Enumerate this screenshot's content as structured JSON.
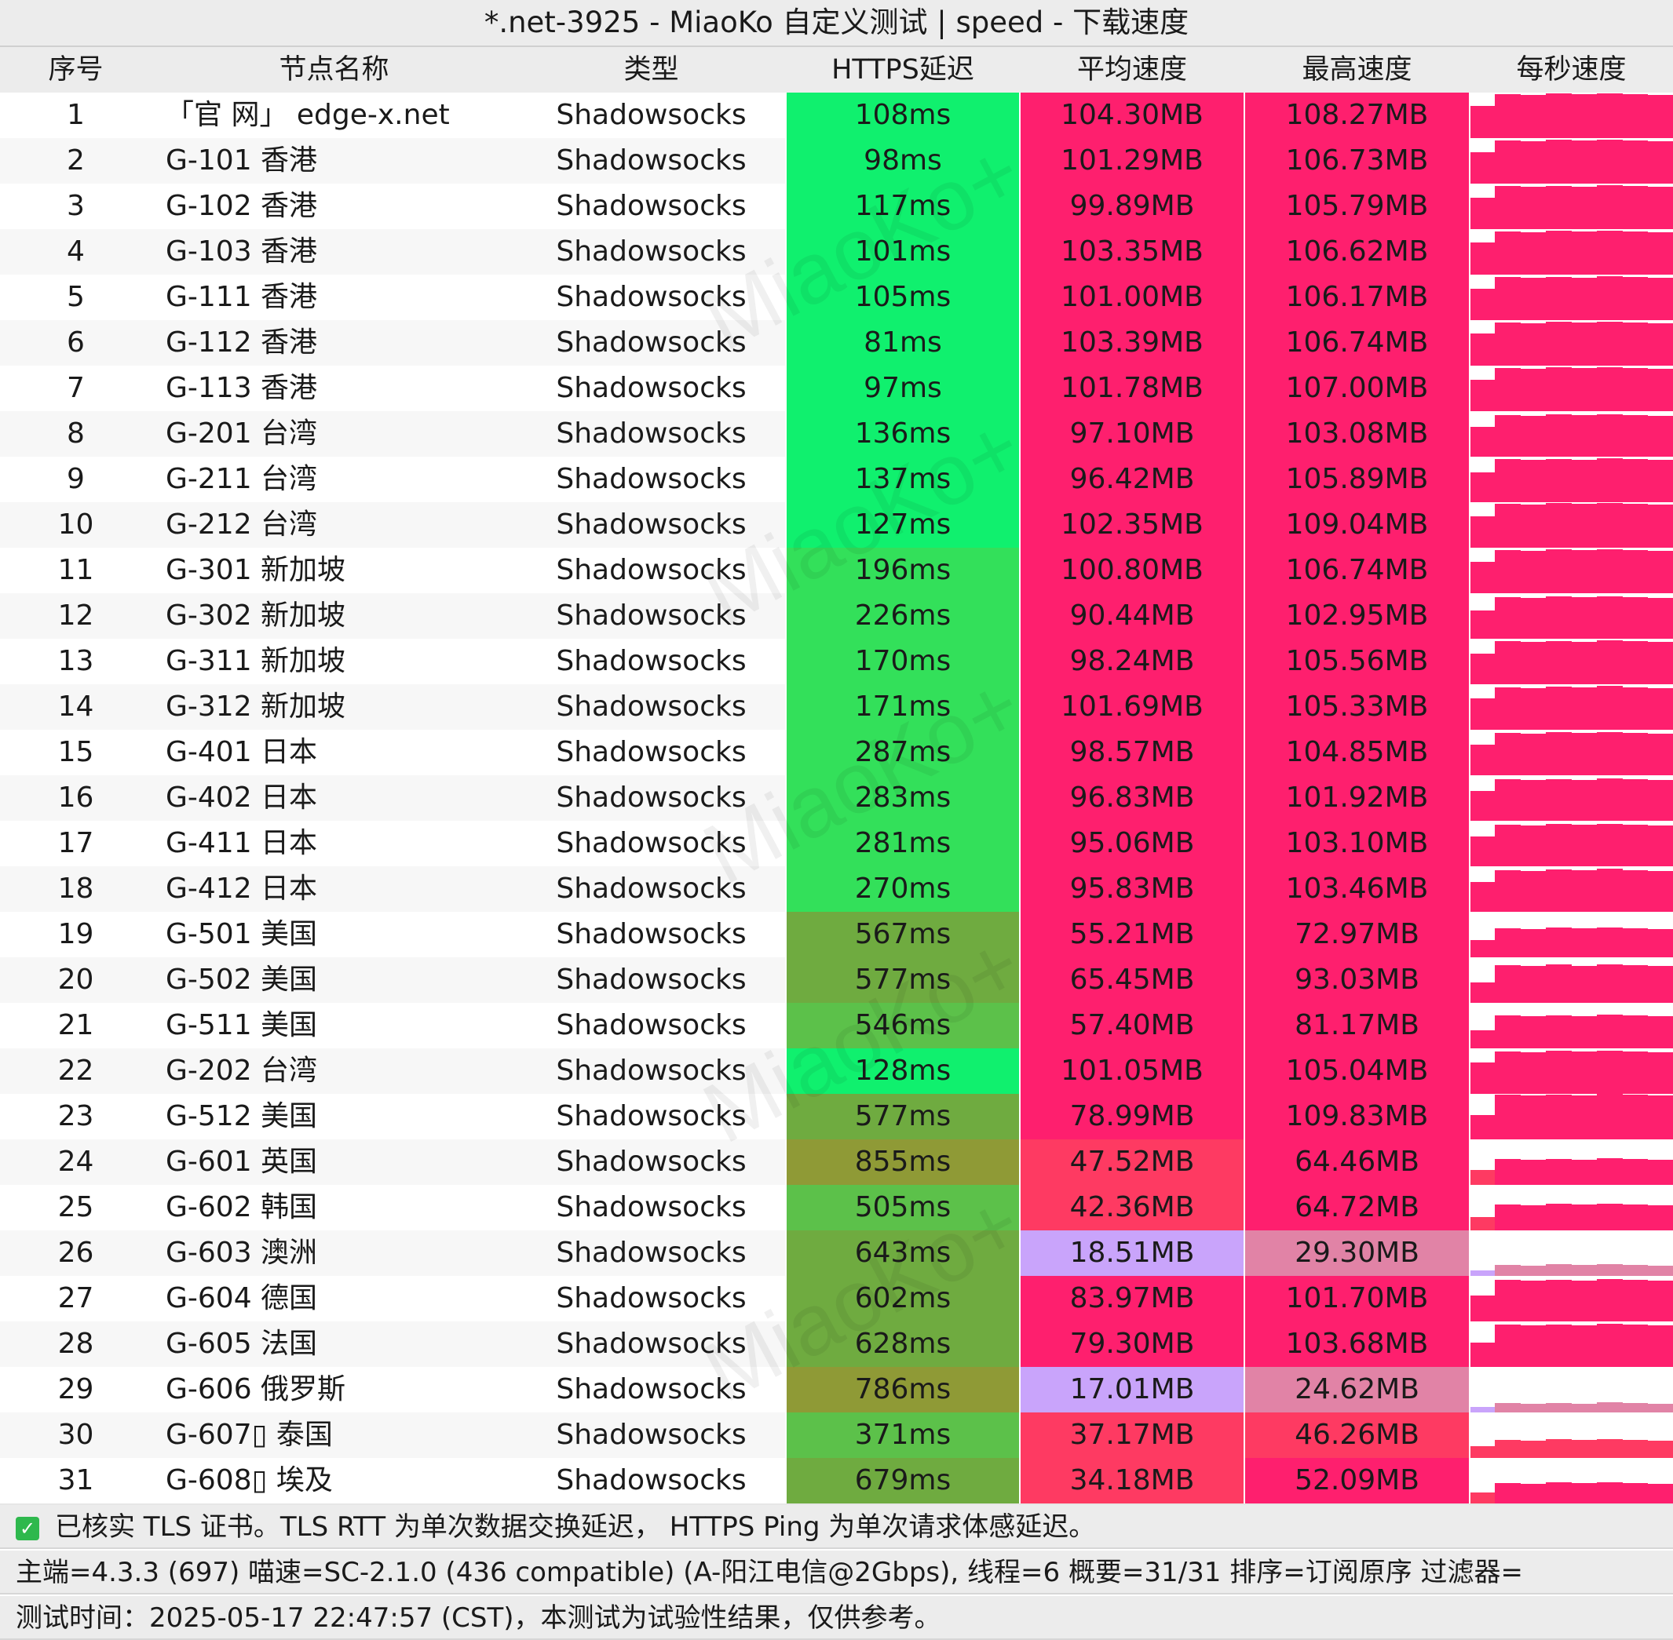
{
  "title": "*.net-3925 - MiaoKo 自定义测试 | speed - 下载速度",
  "columns": [
    "序号",
    "节点名称",
    "类型",
    "HTTPS延迟",
    "平均速度",
    "最高速度",
    "每秒速度"
  ],
  "rows": [
    {
      "idx": "1",
      "name": "「官 网」 edge-x.net",
      "type": "Shadowsocks",
      "latency": "108ms",
      "avg": "104.30MB",
      "max": "108.27MB"
    },
    {
      "idx": "2",
      "name": "G-101 香港",
      "type": "Shadowsocks",
      "latency": "98ms",
      "avg": "101.29MB",
      "max": "106.73MB"
    },
    {
      "idx": "3",
      "name": "G-102 香港",
      "type": "Shadowsocks",
      "latency": "117ms",
      "avg": "99.89MB",
      "max": "105.79MB"
    },
    {
      "idx": "4",
      "name": "G-103 香港",
      "type": "Shadowsocks",
      "latency": "101ms",
      "avg": "103.35MB",
      "max": "106.62MB"
    },
    {
      "idx": "5",
      "name": "G-111 香港",
      "type": "Shadowsocks",
      "latency": "105ms",
      "avg": "101.00MB",
      "max": "106.17MB"
    },
    {
      "idx": "6",
      "name": "G-112 香港",
      "type": "Shadowsocks",
      "latency": "81ms",
      "avg": "103.39MB",
      "max": "106.74MB"
    },
    {
      "idx": "7",
      "name": "G-113 香港",
      "type": "Shadowsocks",
      "latency": "97ms",
      "avg": "101.78MB",
      "max": "107.00MB"
    },
    {
      "idx": "8",
      "name": "G-201 台湾",
      "type": "Shadowsocks",
      "latency": "136ms",
      "avg": "97.10MB",
      "max": "103.08MB"
    },
    {
      "idx": "9",
      "name": "G-211 台湾",
      "type": "Shadowsocks",
      "latency": "137ms",
      "avg": "96.42MB",
      "max": "105.89MB"
    },
    {
      "idx": "10",
      "name": "G-212 台湾",
      "type": "Shadowsocks",
      "latency": "127ms",
      "avg": "102.35MB",
      "max": "109.04MB"
    },
    {
      "idx": "11",
      "name": "G-301 新加坡",
      "type": "Shadowsocks",
      "latency": "196ms",
      "avg": "100.80MB",
      "max": "106.74MB"
    },
    {
      "idx": "12",
      "name": "G-302 新加坡",
      "type": "Shadowsocks",
      "latency": "226ms",
      "avg": "90.44MB",
      "max": "102.95MB"
    },
    {
      "idx": "13",
      "name": "G-311 新加坡",
      "type": "Shadowsocks",
      "latency": "170ms",
      "avg": "98.24MB",
      "max": "105.56MB"
    },
    {
      "idx": "14",
      "name": "G-312 新加坡",
      "type": "Shadowsocks",
      "latency": "171ms",
      "avg": "101.69MB",
      "max": "105.33MB"
    },
    {
      "idx": "15",
      "name": "G-401 日本",
      "type": "Shadowsocks",
      "latency": "287ms",
      "avg": "98.57MB",
      "max": "104.85MB"
    },
    {
      "idx": "16",
      "name": "G-402 日本",
      "type": "Shadowsocks",
      "latency": "283ms",
      "avg": "96.83MB",
      "max": "101.92MB"
    },
    {
      "idx": "17",
      "name": "G-411 日本",
      "type": "Shadowsocks",
      "latency": "281ms",
      "avg": "95.06MB",
      "max": "103.10MB"
    },
    {
      "idx": "18",
      "name": "G-412 日本",
      "type": "Shadowsocks",
      "latency": "270ms",
      "avg": "95.83MB",
      "max": "103.46MB"
    },
    {
      "idx": "19",
      "name": "G-501 美国",
      "type": "Shadowsocks",
      "latency": "567ms",
      "avg": "55.21MB",
      "max": "72.97MB"
    },
    {
      "idx": "20",
      "name": "G-502 美国",
      "type": "Shadowsocks",
      "latency": "577ms",
      "avg": "65.45MB",
      "max": "93.03MB"
    },
    {
      "idx": "21",
      "name": "G-511 美国",
      "type": "Shadowsocks",
      "latency": "546ms",
      "avg": "57.40MB",
      "max": "81.17MB"
    },
    {
      "idx": "22",
      "name": "G-202 台湾",
      "type": "Shadowsocks",
      "latency": "128ms",
      "avg": "101.05MB",
      "max": "105.04MB"
    },
    {
      "idx": "23",
      "name": "G-512 美国",
      "type": "Shadowsocks",
      "latency": "577ms",
      "avg": "78.99MB",
      "max": "109.83MB"
    },
    {
      "idx": "24",
      "name": "G-601 英国",
      "type": "Shadowsocks",
      "latency": "855ms",
      "avg": "47.52MB",
      "max": "64.46MB"
    },
    {
      "idx": "25",
      "name": "G-602 韩国",
      "type": "Shadowsocks",
      "latency": "505ms",
      "avg": "42.36MB",
      "max": "64.72MB"
    },
    {
      "idx": "26",
      "name": "G-603 澳洲",
      "type": "Shadowsocks",
      "latency": "643ms",
      "avg": "18.51MB",
      "max": "29.30MB"
    },
    {
      "idx": "27",
      "name": "G-604 德国",
      "type": "Shadowsocks",
      "latency": "602ms",
      "avg": "83.97MB",
      "max": "101.70MB"
    },
    {
      "idx": "28",
      "name": "G-605 法国",
      "type": "Shadowsocks",
      "latency": "628ms",
      "avg": "79.30MB",
      "max": "103.68MB"
    },
    {
      "idx": "29",
      "name": "G-606 俄罗斯",
      "type": "Shadowsocks",
      "latency": "786ms",
      "avg": "17.01MB",
      "max": "24.62MB"
    },
    {
      "idx": "30",
      "name": "G-607▯ 泰国",
      "type": "Shadowsocks",
      "latency": "371ms",
      "avg": "37.17MB",
      "max": "46.26MB"
    },
    {
      "idx": "31",
      "name": "G-608▯ 埃及",
      "type": "Shadowsocks",
      "latency": "679ms",
      "avg": "34.18MB",
      "max": "52.09MB"
    }
  ],
  "footer": {
    "line1": "已核实 TLS 证书。TLS RTT 为单次数据交换延迟， HTTPS Ping 为单次请求体感延迟。",
    "line2": "主端=4.3.3 (697) 喵速=SC-2.1.0 (436 compatible) (A-阳江电信@2Gbps), 线程=6 概要=31/31 排序=订阅原序 过滤器=",
    "line3": "测试时间：2025-05-17 22:47:57 (CST)，本测试为试验性结果，仅供参考。",
    "check_icon": "check-icon"
  },
  "watermark": "MiaoKo+",
  "colors": {
    "header_bg": "#ececec",
    "lat_fast": "#10f06e",
    "lat_good": "#33e05a",
    "lat_mid": "#5cc14a",
    "lat_slow": "#6fab40",
    "lat_vslow": "#8f9a36",
    "speed_high": "#fe1f6e",
    "speed_mid": "#fe3a62",
    "speed_low": "#c9a4fb",
    "speed_low2": "#e183a6"
  }
}
